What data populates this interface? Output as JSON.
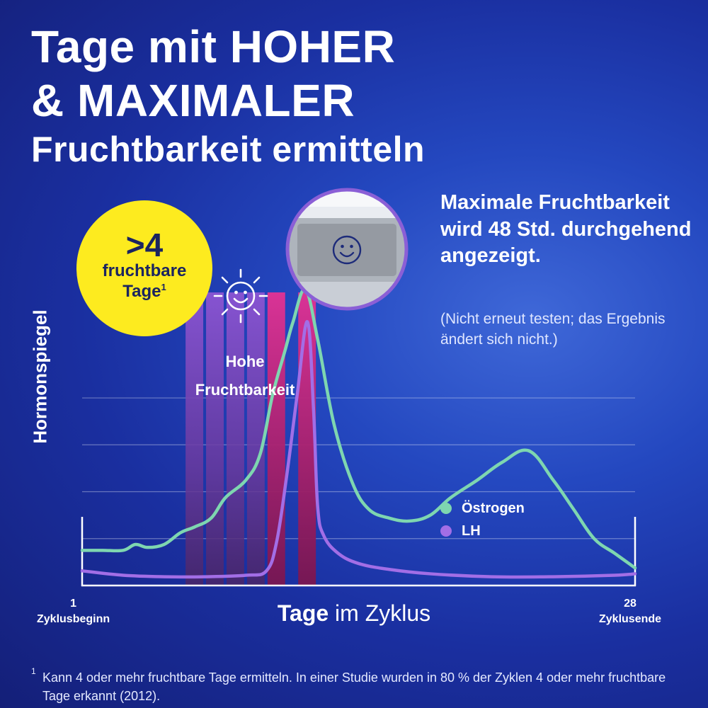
{
  "title": {
    "line1": "Tage mit HOHER",
    "line2": "& MAXIMALER",
    "line3": "Fruchtbarkeit ermitteln"
  },
  "badge": {
    "count": ">4",
    "line1": "fruchtbare",
    "line2": "Tage",
    "footnote_mark": "1"
  },
  "peak_text": {
    "headline": "Maximale Fruchtbarkeit wird 48 Std. durchgehend angezeigt.",
    "note": "(Nicht erneut testen; das Ergebnis ändert sich nicht.)"
  },
  "colors": {
    "high_band": "#8c55d3",
    "peak_band": "#c2267c",
    "oestrogen": "#7ed6b0",
    "lh": "#a26ee6",
    "badge": "#fdeb1f"
  },
  "icons": [
    "smiley-sun-icon",
    "smiley-display-icon"
  ],
  "chart_data": {
    "type": "line",
    "xlabel_bold": "Tage",
    "xlabel_rest": "im Zyklus",
    "ylabel": "Hormonspiegel",
    "xlim": [
      1,
      28
    ],
    "ylim": [
      0,
      10
    ],
    "grid": true,
    "x_ticks": [
      {
        "value": "1",
        "label": "Zyklusbeginn"
      },
      {
        "value": "28",
        "label": "Zyklusende"
      }
    ],
    "legend_position": "right",
    "bands": [
      {
        "name": "Hohe Fruchtbarkeit",
        "label_line1": "Hohe",
        "label_line2": "Fruchtbarkeit",
        "kind": "high",
        "days": [
          6,
          7,
          8,
          9
        ]
      },
      {
        "name": "Maximale Fruchtbarkeit",
        "kind": "peak",
        "days": [
          10.5,
          12
        ]
      }
    ],
    "series": [
      {
        "name": "Östrogen",
        "color": "#7ed6b0",
        "x": [
          1,
          2,
          3,
          3.6,
          4.2,
          5,
          5.8,
          6.5,
          7.3,
          8,
          9,
          9.7,
          10.3,
          10.9,
          11.3,
          11.9,
          12.5,
          13.3,
          14.2,
          15,
          16,
          17,
          18,
          19,
          20.3,
          21.5,
          22.8,
          24,
          25,
          26,
          27,
          28
        ],
        "y": [
          1.2,
          1.2,
          1.2,
          1.4,
          1.3,
          1.4,
          1.8,
          2.0,
          2.3,
          3.0,
          3.6,
          4.5,
          6.5,
          8.0,
          9.0,
          10.1,
          8.4,
          5.5,
          3.5,
          2.6,
          2.3,
          2.2,
          2.4,
          3.0,
          3.6,
          4.2,
          4.6,
          3.6,
          2.6,
          1.6,
          1.1,
          0.6
        ]
      },
      {
        "name": "LH",
        "color": "#a26ee6",
        "x": [
          1,
          3,
          5,
          7,
          9,
          10,
          10.5,
          11,
          11.5,
          12,
          12.3,
          12.5,
          12.8,
          13.5,
          14.5,
          16,
          18,
          21,
          24,
          27,
          28
        ],
        "y": [
          0.5,
          0.35,
          0.3,
          0.3,
          0.35,
          0.5,
          1.5,
          3.8,
          6.5,
          9.0,
          6.0,
          2.7,
          1.7,
          1.1,
          0.75,
          0.55,
          0.4,
          0.3,
          0.3,
          0.35,
          0.4
        ]
      }
    ]
  },
  "footnote": {
    "mark": "1",
    "text": "Kann 4 oder mehr fruchtbare Tage ermitteln. In einer Studie wurden in 80 % der Zyklen 4 oder mehr fruchtbare Tage erkannt (2012)."
  }
}
